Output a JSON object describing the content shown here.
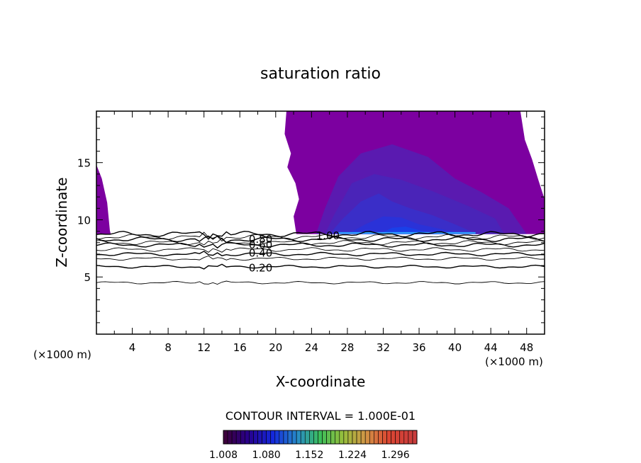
{
  "chart_data": {
    "type": "contour",
    "title": "saturation ratio",
    "xlabel": "X-coordinate",
    "ylabel": "Z-coordinate",
    "x_unit_label": "(×1000 m)",
    "z_unit_label": "(×1000 m)",
    "xlim": [
      0,
      50
    ],
    "ylim": [
      0,
      19.5
    ],
    "x_ticks": [
      "4",
      "8",
      "12",
      "16",
      "20",
      "24",
      "28",
      "32",
      "36",
      "40",
      "44",
      "48"
    ],
    "y_ticks": [
      "5",
      "10",
      "15"
    ],
    "contour_interval_label": "CONTOUR INTERVAL = 1.000E-01",
    "colorbar_labels": [
      "1.008",
      "1.080",
      "1.152",
      "1.224",
      "1.296"
    ],
    "colorbar_range": [
      1.008,
      1.332
    ],
    "contour_labels": [
      {
        "text": "0.20",
        "x": 17.0,
        "z": 5.8
      },
      {
        "text": "0.40",
        "x": 17.0,
        "z": 7.1
      },
      {
        "text": "0.60",
        "x": 17.0,
        "z": 7.8
      },
      {
        "text": "0.80",
        "x": 17.0,
        "z": 8.3
      },
      {
        "text": "1.00",
        "x": 24.5,
        "z": 8.6
      }
    ],
    "contour_levels": [
      {
        "level": 0.1,
        "z": 4.5
      },
      {
        "level": 0.2,
        "z": 5.9
      },
      {
        "level": 0.3,
        "z": 6.6
      },
      {
        "level": 0.4,
        "z": 7.0
      },
      {
        "level": 0.5,
        "z": 7.4
      },
      {
        "level": 0.6,
        "z": 7.8
      },
      {
        "level": 0.7,
        "z": 8.0
      },
      {
        "level": 0.8,
        "z": 8.3
      },
      {
        "level": 0.9,
        "z": 8.5
      },
      {
        "level": 1.0,
        "z": 8.75
      }
    ],
    "supersaturated_region": {
      "base_z": 8.75,
      "left_patch_xmax": 1.5,
      "main_xmin": 22.0,
      "colors": [
        "#7c00a0",
        "#5a1ab0",
        "#4a24b8",
        "#3a2ec8",
        "#2a32d8",
        "#1a40e8"
      ]
    },
    "colors": {
      "supersat_base": "#7c00a0",
      "supersat_mid": "#5a1ab0",
      "supersat_inner": "#4a24b8",
      "supersat_core": "#2838d0",
      "cyan_streak": "#30a0ff"
    }
  }
}
